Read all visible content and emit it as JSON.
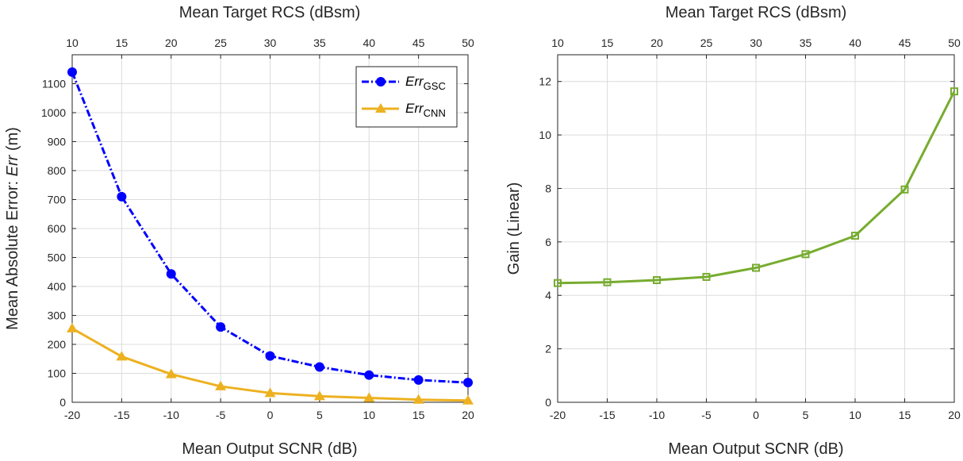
{
  "colors": {
    "gsc": "#0000ff",
    "cnn": "#edb120",
    "gain": "#77ac30",
    "grid": "#dcdcdc",
    "axis": "#262626"
  },
  "chart_data": [
    {
      "type": "line",
      "xlabel": "Mean Output SCNR (dB)",
      "top_xlabel": "Mean Target RCS (dBsm)",
      "ylabel_prefix": "Mean Absolute Error: ",
      "ylabel_italic": "Err",
      "ylabel_suffix": " (m)",
      "x": [
        -20,
        -15,
        -10,
        -5,
        0,
        5,
        10,
        15,
        20
      ],
      "x_ticks": [
        "-20",
        "-15",
        "-10",
        "-5",
        "0",
        "5",
        "10",
        "15",
        "20"
      ],
      "top_x_ticks": [
        "10",
        "15",
        "20",
        "25",
        "30",
        "35",
        "40",
        "45",
        "50"
      ],
      "xlim": [
        -20,
        20
      ],
      "ylim": [
        0,
        1200
      ],
      "y_ticks": [
        "0",
        "100",
        "200",
        "300",
        "400",
        "500",
        "600",
        "700",
        "800",
        "900",
        "1000",
        "1100"
      ],
      "grid": true,
      "legend_position": "top-right",
      "series": [
        {
          "name_main": "Err",
          "name_sub": "GSC",
          "marker": "circle",
          "line_style": "dash-dot",
          "values": [
            1140,
            710,
            443,
            260,
            160,
            122,
            94,
            77,
            68
          ]
        },
        {
          "name_main": "Err",
          "name_sub": "CNN",
          "marker": "triangle",
          "line_style": "solid",
          "values": [
            255,
            158,
            97,
            55,
            32,
            21,
            15,
            9,
            6
          ]
        }
      ]
    },
    {
      "type": "line",
      "xlabel": "Mean Output SCNR (dB)",
      "top_xlabel": "Mean Target RCS (dBsm)",
      "ylabel": "Gain (Linear)",
      "x": [
        -20,
        -15,
        -10,
        -5,
        0,
        5,
        10,
        15,
        20
      ],
      "x_ticks": [
        "-20",
        "-15",
        "-10",
        "-5",
        "0",
        "5",
        "10",
        "15",
        "20"
      ],
      "top_x_ticks": [
        "10",
        "15",
        "20",
        "25",
        "30",
        "35",
        "40",
        "45",
        "50"
      ],
      "xlim": [
        -20,
        20
      ],
      "ylim": [
        0,
        13
      ],
      "y_ticks": [
        "0",
        "2",
        "4",
        "6",
        "8",
        "10",
        "12"
      ],
      "grid": true,
      "series": [
        {
          "marker": "square",
          "line_style": "solid",
          "values": [
            4.46,
            4.49,
            4.57,
            4.69,
            5.03,
            5.54,
            6.23,
            7.96,
            11.63
          ]
        }
      ]
    }
  ]
}
